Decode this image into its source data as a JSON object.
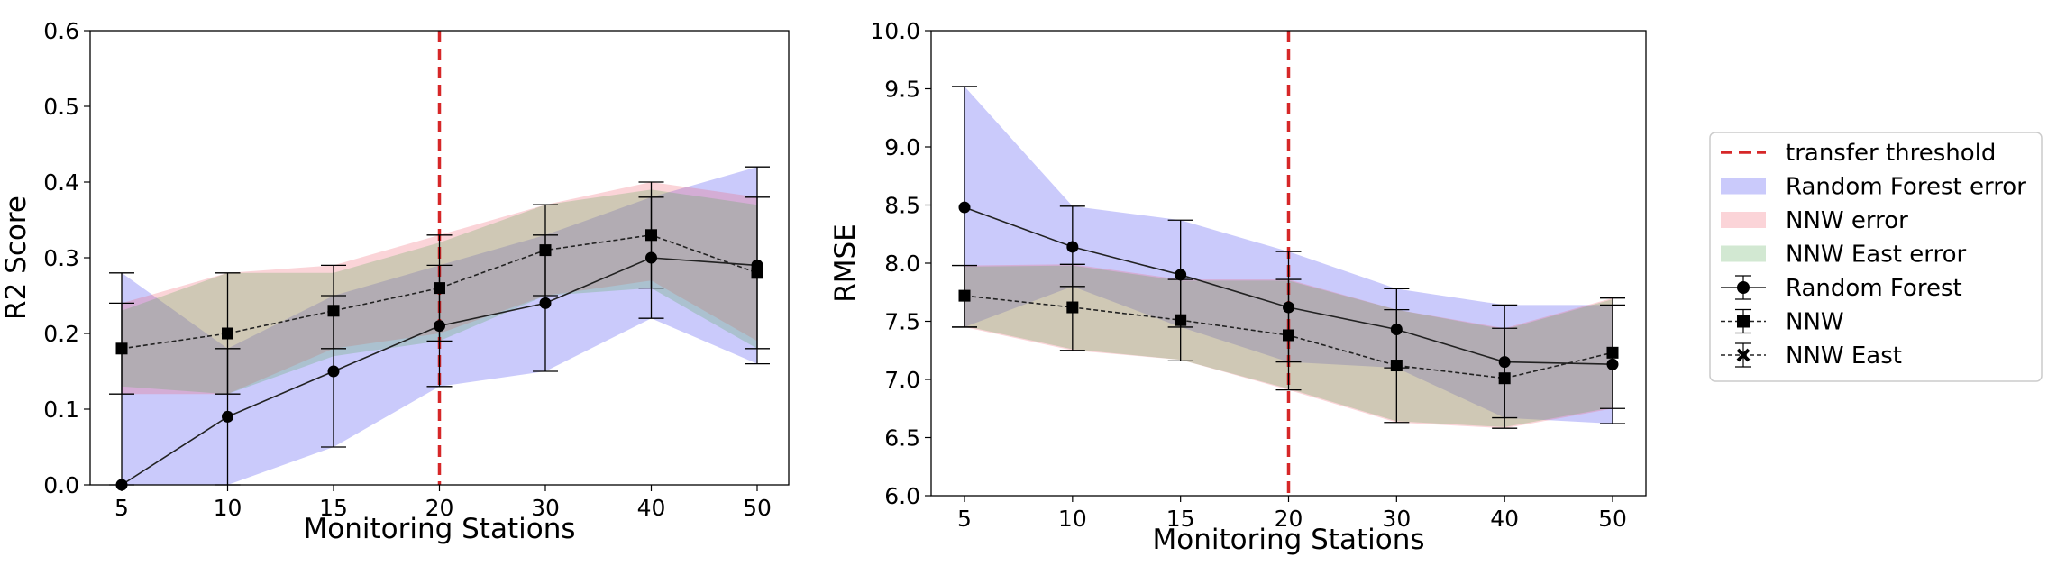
{
  "chart_data": [
    {
      "type": "line",
      "xlabel": "Monitoring Stations",
      "ylabel": "R2 Score",
      "categories": [
        "5",
        "10",
        "15",
        "20",
        "30",
        "40",
        "50"
      ],
      "ylim": [
        0,
        0.6
      ],
      "yticks": [
        "0.0",
        "0.1",
        "0.2",
        "0.3",
        "0.4",
        "0.5",
        "0.6"
      ],
      "threshold_category": "20",
      "bands": [
        {
          "name": "Random Forest error",
          "color": "#3b3bf0",
          "lower": [
            0.0,
            0.0,
            0.05,
            0.13,
            0.15,
            0.22,
            0.16
          ],
          "upper": [
            0.28,
            0.18,
            0.25,
            0.29,
            0.33,
            0.38,
            0.42
          ]
        },
        {
          "name": "NNW error",
          "color": "#f0606e",
          "lower": [
            0.12,
            0.12,
            0.18,
            0.2,
            0.25,
            0.27,
            0.19
          ],
          "upper": [
            0.24,
            0.28,
            0.29,
            0.33,
            0.37,
            0.4,
            0.38
          ]
        },
        {
          "name": "NNW East error",
          "color": "#5aaa5a",
          "lower": [
            0.13,
            0.12,
            0.17,
            0.19,
            0.25,
            0.26,
            0.18
          ],
          "upper": [
            0.23,
            0.28,
            0.28,
            0.32,
            0.37,
            0.39,
            0.37
          ]
        }
      ],
      "series": [
        {
          "name": "Random Forest",
          "marker": "circle",
          "dashed": false,
          "values": [
            0.0,
            0.09,
            0.15,
            0.21,
            0.24,
            0.3,
            0.29
          ],
          "err_lower": [
            0.0,
            0.0,
            0.05,
            0.13,
            0.15,
            0.22,
            0.16
          ],
          "err_upper": [
            0.28,
            0.18,
            0.25,
            0.29,
            0.33,
            0.38,
            0.42
          ]
        },
        {
          "name": "NNW",
          "marker": "square",
          "dashed": true,
          "values": [
            0.18,
            0.2,
            0.23,
            0.26,
            0.31,
            0.33,
            0.28
          ],
          "err_lower": [
            0.12,
            0.12,
            0.18,
            0.19,
            0.25,
            0.26,
            0.18
          ],
          "err_upper": [
            0.24,
            0.28,
            0.29,
            0.33,
            0.37,
            0.4,
            0.38
          ]
        }
      ]
    },
    {
      "type": "line",
      "xlabel": "Monitoring Stations",
      "ylabel": "RMSE",
      "categories": [
        "5",
        "10",
        "15",
        "20",
        "30",
        "40",
        "50"
      ],
      "ylim": [
        6.0,
        10.0
      ],
      "yticks": [
        "6.0",
        "6.5",
        "7.0",
        "7.5",
        "8.0",
        "8.5",
        "9.0",
        "9.5",
        "10.0"
      ],
      "threshold_category": "20",
      "bands": [
        {
          "name": "Random Forest error",
          "color": "#3b3bf0",
          "lower": [
            7.45,
            7.8,
            7.45,
            7.15,
            7.1,
            6.67,
            6.62
          ],
          "upper": [
            9.52,
            8.49,
            8.37,
            8.1,
            7.78,
            7.64,
            7.64
          ]
        },
        {
          "name": "NNW error",
          "color": "#f0606e",
          "lower": [
            7.45,
            7.25,
            7.17,
            6.91,
            6.63,
            6.58,
            6.75
          ],
          "upper": [
            7.98,
            7.99,
            7.86,
            7.86,
            7.6,
            7.44,
            7.7
          ]
        },
        {
          "name": "NNW East error",
          "color": "#5aaa5a",
          "lower": [
            7.46,
            7.26,
            7.17,
            6.92,
            6.64,
            6.59,
            6.76
          ],
          "upper": [
            7.97,
            7.98,
            7.85,
            7.85,
            7.6,
            7.43,
            7.69
          ]
        }
      ],
      "series": [
        {
          "name": "Random Forest",
          "marker": "circle",
          "dashed": false,
          "values": [
            8.48,
            8.14,
            7.9,
            7.62,
            7.43,
            7.15,
            7.13
          ],
          "err_lower": [
            7.45,
            7.8,
            7.45,
            7.15,
            7.1,
            6.67,
            6.62
          ],
          "err_upper": [
            9.52,
            8.49,
            8.37,
            8.1,
            7.78,
            7.64,
            7.64
          ]
        },
        {
          "name": "NNW",
          "marker": "square",
          "dashed": true,
          "values": [
            7.72,
            7.62,
            7.51,
            7.38,
            7.12,
            7.01,
            7.23
          ],
          "err_lower": [
            7.45,
            7.25,
            7.16,
            6.91,
            6.63,
            6.58,
            6.75
          ],
          "err_upper": [
            7.98,
            7.99,
            7.86,
            7.86,
            7.6,
            7.44,
            7.7
          ]
        }
      ]
    }
  ],
  "legend": {
    "placement": "right",
    "items": [
      {
        "label": "transfer threshold",
        "kind": "threshold",
        "color": "#d62728"
      },
      {
        "label": "Random Forest error",
        "kind": "band",
        "color": "#3b3bf0"
      },
      {
        "label": "NNW error",
        "kind": "band",
        "color": "#f0606e"
      },
      {
        "label": "NNW East error",
        "kind": "band",
        "color": "#5aaa5a"
      },
      {
        "label": "Random Forest",
        "kind": "line",
        "marker": "circle",
        "dashed": false
      },
      {
        "label": "NNW",
        "kind": "line",
        "marker": "square",
        "dashed": true
      },
      {
        "label": "NNW East",
        "kind": "line",
        "marker": "x",
        "dashed": true
      }
    ]
  }
}
